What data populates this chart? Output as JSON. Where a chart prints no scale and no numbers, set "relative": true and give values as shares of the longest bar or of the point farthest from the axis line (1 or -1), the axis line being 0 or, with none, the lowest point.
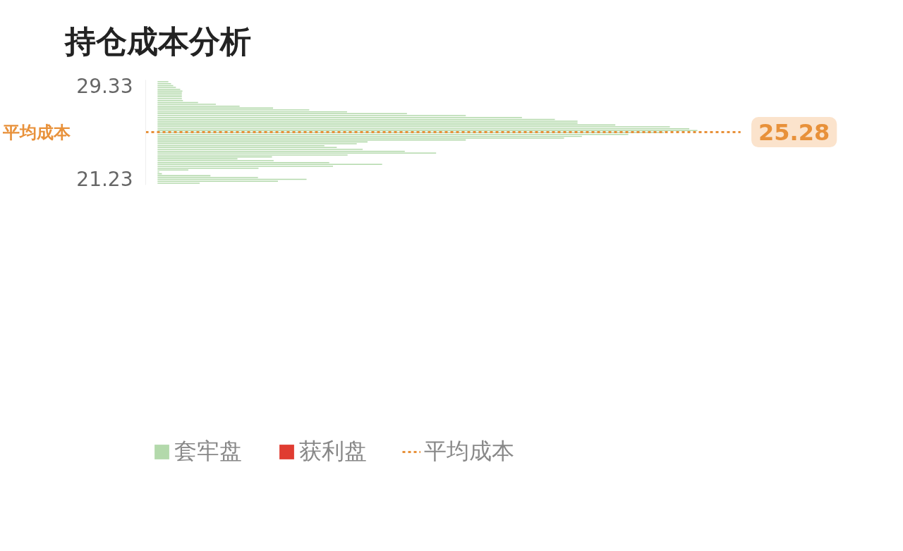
{
  "chart_data": {
    "type": "bar",
    "orientation": "horizontal",
    "relative": true,
    "title": "持仓成本分析",
    "x": [
      29.69,
      29.53,
      29.36,
      29.2,
      29.03,
      28.87,
      28.7,
      28.54,
      28.38,
      28.21,
      28.05,
      27.88,
      27.72,
      27.55,
      27.39,
      27.23,
      27.06,
      26.9,
      26.73,
      26.57,
      26.4,
      26.24,
      26.08,
      25.91,
      25.75,
      25.58,
      25.42,
      25.25,
      25.09,
      24.92,
      24.76,
      24.6,
      24.43,
      24.27,
      24.1,
      23.94,
      23.77,
      23.61,
      23.45,
      23.28,
      23.12,
      22.95,
      22.79,
      22.62,
      22.46,
      22.3,
      22.13,
      21.97,
      21.8,
      21.64,
      21.47,
      21.31,
      21.15,
      20.98,
      20.82
    ],
    "ylim": [
      20.66,
      29.85
    ],
    "yticks": [
      29.33,
      21.23
    ],
    "annotations": [
      "25.28"
    ],
    "series": [
      {
        "name": "套牢盘",
        "color": "#b3d9ab",
        "values": [
          0.02,
          0.025,
          0.029,
          0.034,
          0.042,
          0.046,
          0.045,
          0.045,
          0.045,
          0.045,
          0.047,
          0.075,
          0.108,
          0.152,
          0.214,
          0.281,
          0.351,
          0.462,
          0.571,
          0.675,
          0.736,
          0.778,
          0.778,
          0.848,
          0.949,
          0.985,
          1,
          0.938,
          0.872,
          0.786,
          0.753,
          0.571,
          0.389,
          0.369,
          0.309,
          0.332,
          0.38,
          0.458,
          0.516,
          0.352,
          0.212,
          0.148,
          0.215,
          0.318,
          0.416,
          0.325,
          0.187,
          0.057,
          0.003,
          0.008,
          0.098,
          0.186,
          0.276,
          0.223,
          0.078
        ]
      },
      {
        "name": "获利盘",
        "color": "#e03c31",
        "values": [
          null,
          null,
          null,
          null,
          null,
          null,
          null,
          null,
          null,
          null,
          null,
          null,
          null,
          null,
          null,
          null,
          null,
          null,
          null,
          null,
          null,
          null,
          null,
          null,
          null,
          null,
          null,
          null,
          null,
          null,
          null,
          null,
          null,
          null,
          null,
          null,
          null,
          null,
          null,
          null,
          null,
          null,
          null,
          null,
          null,
          null,
          null,
          null,
          null,
          null,
          null,
          null,
          null,
          null,
          null
        ]
      }
    ],
    "ref_lines": [
      {
        "axis": "y",
        "value": 25.28,
        "label": "平均成本",
        "color": "#e8913a",
        "line_style": "dashed"
      }
    ],
    "legend": "bottom",
    "grid": false
  }
}
